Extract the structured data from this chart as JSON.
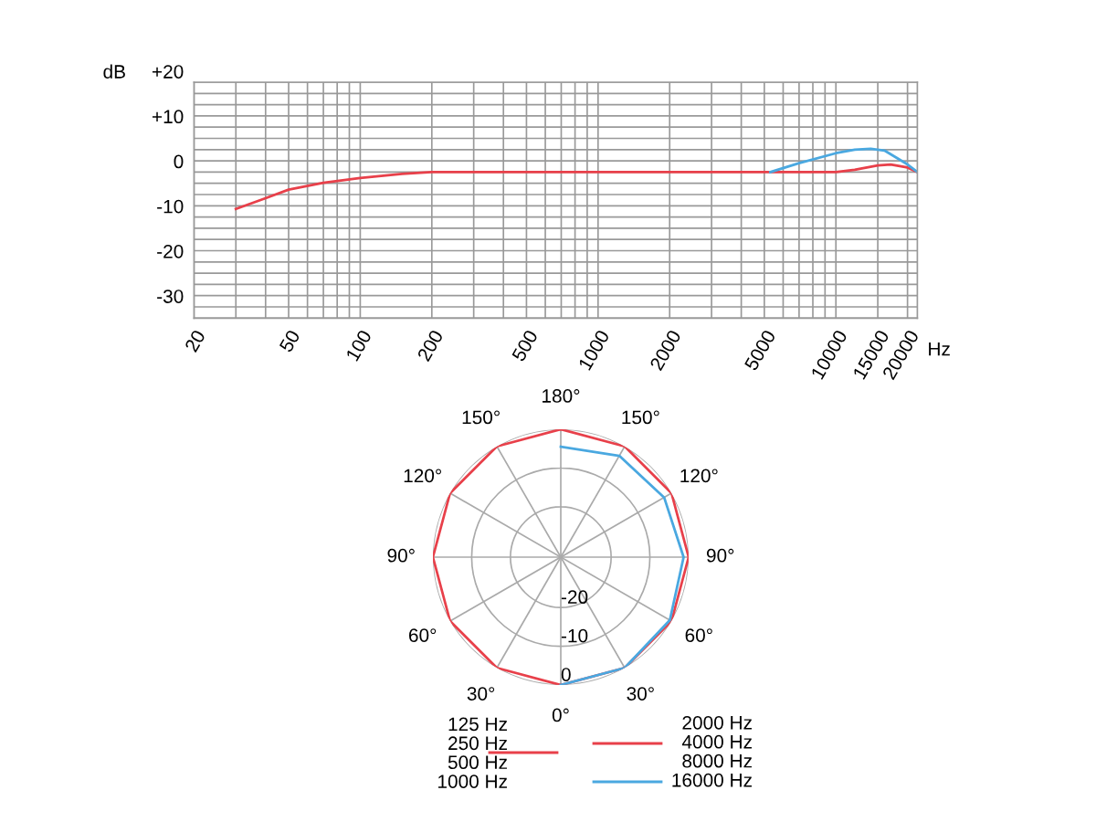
{
  "chart_data": [
    {
      "type": "line",
      "ylabel": "dB",
      "xlabel": "Hz",
      "log": "x",
      "grid": true,
      "legend": false,
      "xlim": [
        20,
        22000
      ],
      "xticks": [
        20,
        {
          "value": 30,
          "label": null
        },
        {
          "value": 40,
          "label": null
        },
        50,
        {
          "value": 60,
          "label": null
        },
        {
          "value": 70,
          "label": null
        },
        {
          "value": 80,
          "label": null
        },
        {
          "value": 90,
          "label": null
        },
        100,
        200,
        {
          "value": 300,
          "label": null
        },
        {
          "value": 400,
          "label": null
        },
        500,
        {
          "value": 600,
          "label": null
        },
        {
          "value": 700,
          "label": null
        },
        {
          "value": 800,
          "label": null
        },
        {
          "value": 900,
          "label": null
        },
        1000,
        2000,
        {
          "value": 3000,
          "label": null
        },
        {
          "value": 4000,
          "label": null
        },
        5000,
        {
          "value": 6000,
          "label": null
        },
        {
          "value": 7000,
          "label": null
        },
        {
          "value": 8000,
          "label": null
        },
        {
          "value": 9000,
          "label": null
        },
        10000,
        15000,
        20000
      ],
      "ylim": [
        -32.5,
        20
      ],
      "yticks": [
        {
          "value": 20,
          "label": "+20"
        },
        {
          "value": 17.5,
          "label": null
        },
        {
          "value": 15,
          "label": null
        },
        {
          "value": 12.5,
          "label": null
        },
        {
          "value": 10,
          "label": "+10"
        },
        {
          "value": 7.5,
          "label": null
        },
        {
          "value": 5,
          "label": null
        },
        {
          "value": 2.5,
          "label": null
        },
        0,
        {
          "value": -2.5,
          "label": null
        },
        {
          "value": -5,
          "label": null
        },
        {
          "value": -7.5,
          "label": null
        },
        -10,
        {
          "value": -12.5,
          "label": null
        },
        {
          "value": -15,
          "label": null
        },
        {
          "value": -17.5,
          "label": null
        },
        -20,
        {
          "value": -22.5,
          "label": null
        },
        {
          "value": -25,
          "label": null
        },
        {
          "value": -27.5,
          "label": null
        },
        -30,
        {
          "value": -32.5,
          "label": null
        }
      ],
      "series": [
        {
          "color": "#e8404a",
          "x": [
            30,
            40,
            50,
            70,
            100,
            150,
            200,
            1000,
            10000,
            12000,
            15000,
            17000,
            20000,
            22000
          ],
          "values": [
            -8.2,
            -5.8,
            -3.9,
            -2.4,
            -1.3,
            -0.4,
            0,
            0,
            0,
            0.5,
            1.5,
            1.7,
            1,
            0
          ]
        },
        {
          "color": "#4aa8e0",
          "x": [
            5300,
            7000,
            10000,
            12000,
            14000,
            16000,
            20000,
            22000
          ],
          "values": [
            0,
            2,
            4.2,
            5,
            5.2,
            4.8,
            1.7,
            0
          ]
        }
      ]
    },
    {
      "type": "radar",
      "categories": [
        "180°",
        "150°",
        "120°",
        "90°",
        "60°",
        "30°",
        "0°",
        "30°",
        "60°",
        "90°",
        "120°",
        "150°"
      ],
      "ylim": [
        -33,
        0
      ],
      "yticks": [
        0,
        -10,
        -20
      ],
      "grid": true,
      "legend": "bottom",
      "series": [
        {
          "name": "125 Hz\n250 Hz\n500 Hz\n1000 Hz",
          "color": "#e8404a",
          "values": [
            0,
            null,
            null,
            null,
            null,
            null,
            0,
            0,
            0,
            0,
            0,
            0
          ]
        },
        {
          "name": "2000 Hz\n4000 Hz\n8000 Hz",
          "color": "#e8404a",
          "values": [
            0,
            0,
            0,
            0,
            0,
            0,
            0,
            null,
            null,
            null,
            null,
            null
          ]
        },
        {
          "name": "16000 Hz",
          "color": "#4aa8e0",
          "values": [
            -4.5,
            -2.8,
            -2.2,
            -1.3,
            -0.5,
            0,
            0,
            null,
            null,
            null,
            null,
            null
          ]
        }
      ]
    }
  ]
}
